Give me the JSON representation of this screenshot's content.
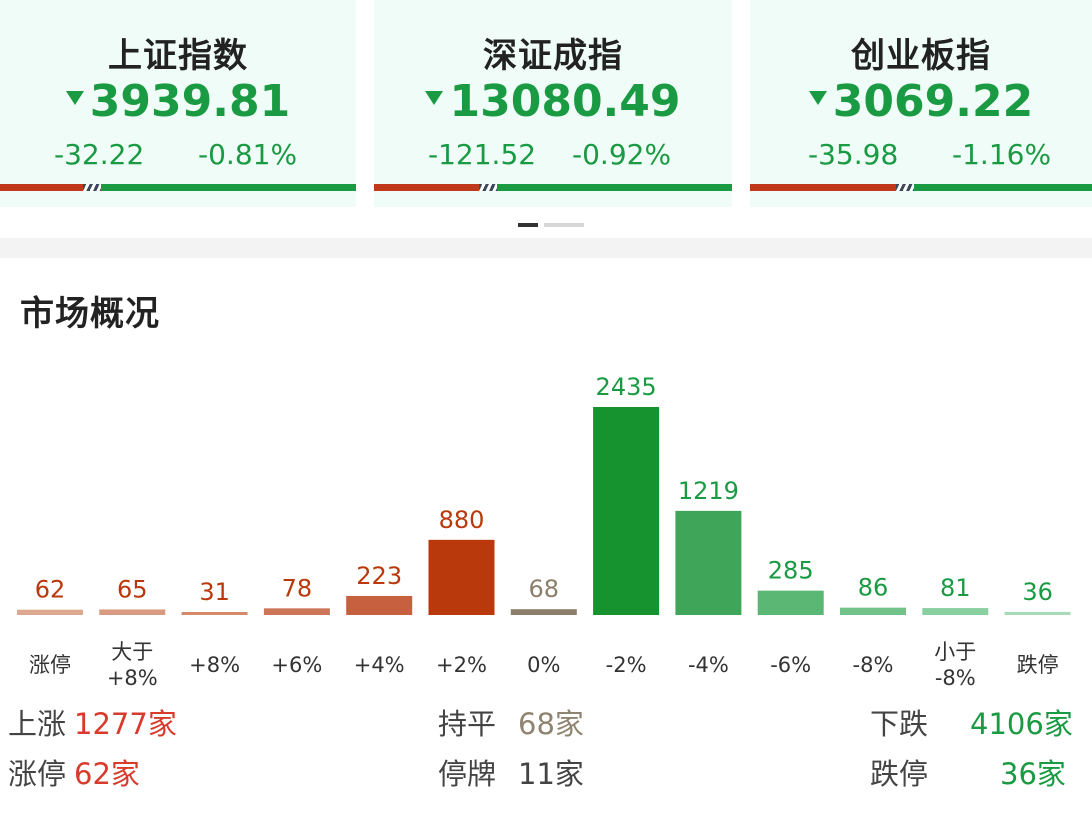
{
  "indices": [
    {
      "name": "上证指数",
      "price": "3939.81",
      "change": "-32.22",
      "percent": "-0.81%",
      "up_ratio": 0.28
    },
    {
      "name": "深证成指",
      "price": "13080.49",
      "change": "-121.52",
      "percent": "-0.92%",
      "up_ratio": 0.3
    },
    {
      "name": "创业板指",
      "price": "3069.22",
      "change": "-35.98",
      "percent": "-1.16%",
      "up_ratio": 0.43
    }
  ],
  "overview": {
    "title": "市场概况",
    "summary": {
      "rise_label": "上涨",
      "rise_value": "1277家",
      "limit_up_label": "涨停",
      "limit_up_value": "62家",
      "flat_label": "持平",
      "flat_value": "68家",
      "suspended_label": "停牌",
      "suspended_value": "11家",
      "fall_label": "下跌",
      "fall_value": "4106家",
      "limit_down_label": "跌停",
      "limit_down_value": "36家"
    }
  },
  "colors": {
    "up": "#c0391b",
    "down": "#1a9a42",
    "flat": "#8c7e6a",
    "card_bg": "#effcf7"
  },
  "chart_data": {
    "type": "bar",
    "categories": [
      "涨停",
      "大于\n+8%",
      "+8%",
      "+6%",
      "+4%",
      "+2%",
      "0%",
      "-2%",
      "-4%",
      "-6%",
      "-8%",
      "小于\n-8%",
      "跌停"
    ],
    "values": [
      62,
      65,
      31,
      78,
      223,
      880,
      68,
      2435,
      1219,
      285,
      86,
      81,
      36
    ],
    "colors": [
      "#dca890",
      "#d89a80",
      "#d4896d",
      "#cd7558",
      "#c7603f",
      "#b9380c",
      "#8c7e6a",
      "#16922f",
      "#3fa659",
      "#5ab774",
      "#72c389",
      "#8acfa0",
      "#a6dbb6"
    ],
    "label_colors": [
      "#b9380c",
      "#b9380c",
      "#b9380c",
      "#b9380c",
      "#b9380c",
      "#b9380c",
      "#8c7e6a",
      "#1a9a42",
      "#1a9a42",
      "#1a9a42",
      "#1a9a42",
      "#1a9a42",
      "#1a9a42"
    ],
    "ylim": [
      0,
      2435
    ]
  }
}
